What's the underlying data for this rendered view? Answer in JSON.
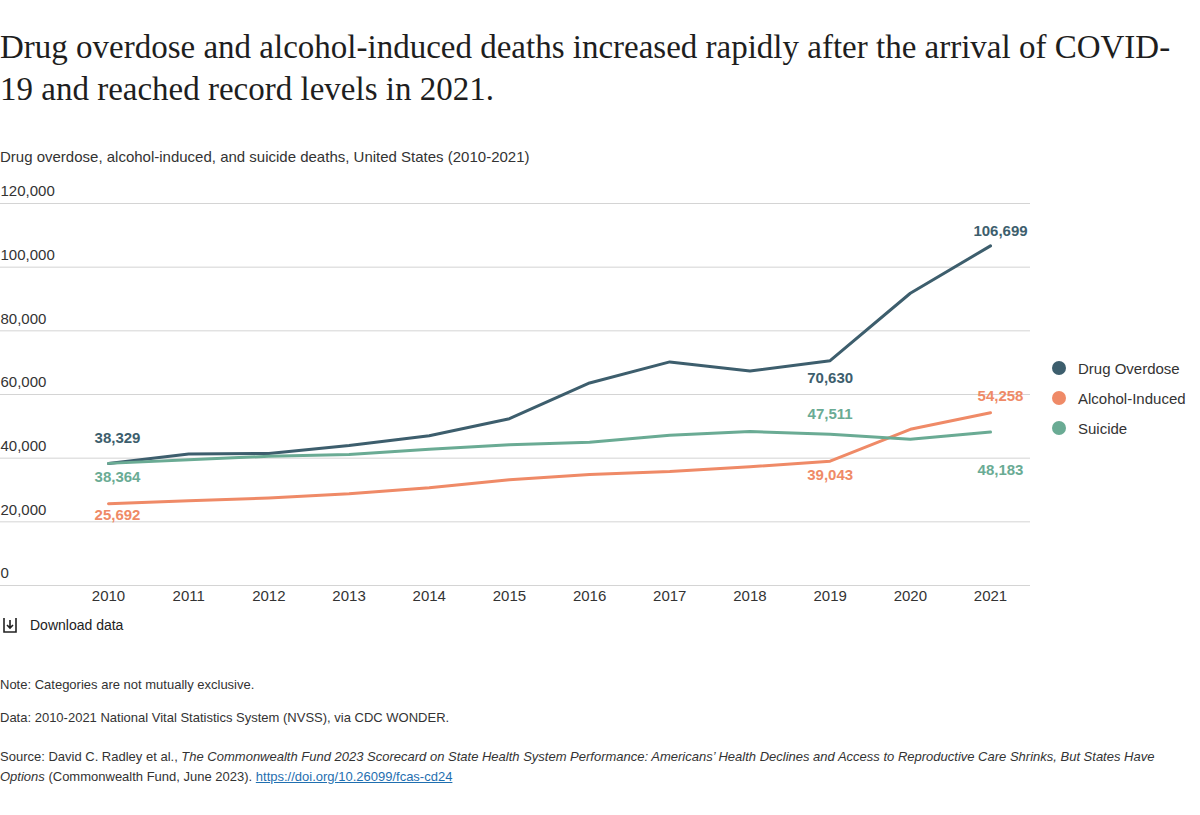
{
  "chart_data": {
    "type": "line",
    "title": "Drug overdose and alcohol-induced deaths increased rapidly after the arrival of COVID-19 and reached record levels in 2021.",
    "subtitle": "Drug overdose, alcohol-induced, and suicide deaths, United States (2010-2021)",
    "x": [
      2010,
      2011,
      2012,
      2013,
      2014,
      2015,
      2016,
      2017,
      2018,
      2019,
      2020,
      2021
    ],
    "xlim": [
      2010,
      2021
    ],
    "xticks": [
      2010,
      2011,
      2012,
      2013,
      2014,
      2015,
      2016,
      2017,
      2018,
      2019,
      2020,
      2021
    ],
    "ylim": [
      0,
      120000
    ],
    "yticks": [
      0,
      {
        "value": 20000,
        "label": "20,000"
      },
      {
        "value": 40000,
        "label": "40,000"
      },
      {
        "value": 60000,
        "label": "60,000"
      },
      {
        "value": 80000,
        "label": "80,000"
      },
      {
        "value": 100000,
        "label": "100,000"
      },
      {
        "value": 120000,
        "label": "120,000"
      }
    ],
    "grid": true,
    "legend": "right",
    "series": [
      {
        "name": "Drug Overdose",
        "color": "#3d5e6d",
        "values": [
          38329,
          41340,
          41502,
          43982,
          47055,
          52404,
          63632,
          70237,
          67367,
          70630,
          91799,
          106699
        ],
        "value_labels": [
          "38,329",
          null,
          null,
          null,
          null,
          null,
          null,
          null,
          null,
          "70,630",
          null,
          "106,699"
        ]
      },
      {
        "name": "Alcohol-Induced",
        "color": "#ef8a67",
        "values": [
          25692,
          26654,
          27500,
          28800,
          30700,
          33200,
          34900,
          35800,
          37300,
          39043,
          49061,
          54258
        ],
        "value_labels": [
          "25,692",
          null,
          null,
          null,
          null,
          null,
          null,
          null,
          null,
          "39,043",
          null,
          "54,258"
        ]
      },
      {
        "name": "Suicide",
        "color": "#6aab94",
        "values": [
          38364,
          39518,
          40600,
          41149,
          42773,
          44193,
          44965,
          47173,
          48344,
          47511,
          45979,
          48183
        ],
        "value_labels": [
          "38,364",
          null,
          null,
          null,
          null,
          null,
          null,
          null,
          null,
          "47,511",
          null,
          "48,183"
        ]
      }
    ],
    "download_label": "Download data",
    "note": "Note: Categories are not mutually exclusive.",
    "data_source": "Data: 2010-2021 National Vital Statistics System (NVSS), via CDC WONDER.",
    "source": {
      "prefix": "Source: David C. Radley et al., ",
      "title": "The Commonwealth Fund 2023 Scorecard on State Health System Performance: Americans’ Health Declines and Access to Reproductive Care Shrinks, But States Have Options",
      "suffix": " (Commonwealth Fund, June 2023). ",
      "link": "https://doi.org/10.26099/fcas-cd24"
    }
  }
}
